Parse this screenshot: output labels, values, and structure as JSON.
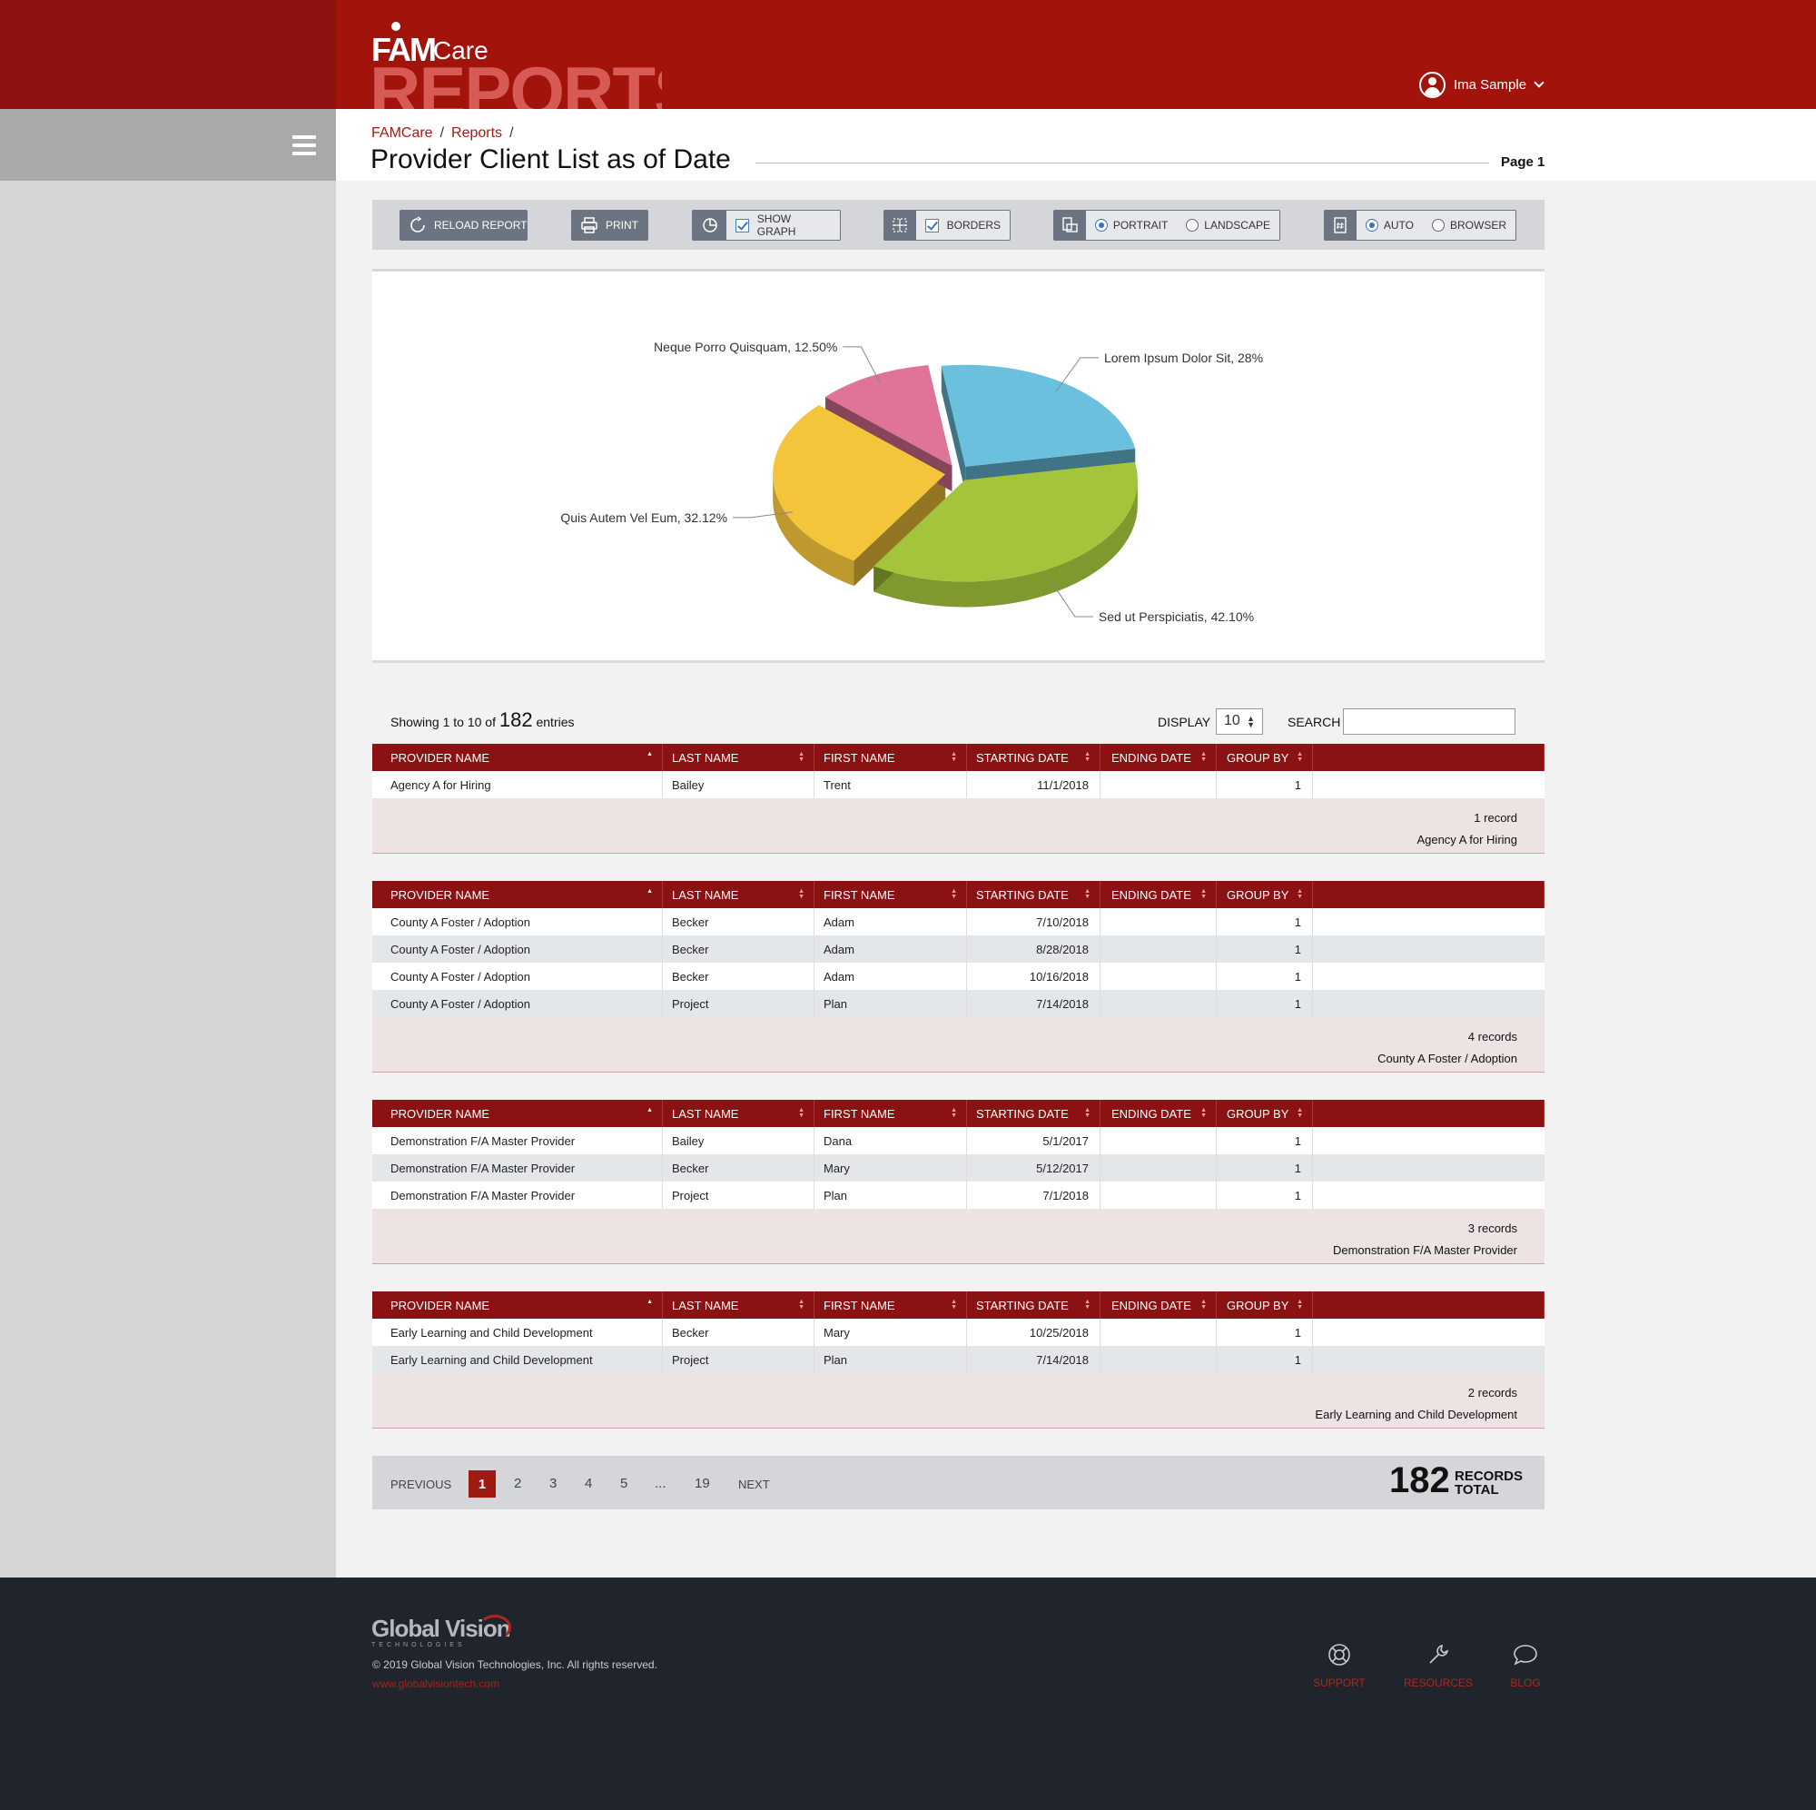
{
  "header": {
    "logo_fam": "FAM",
    "logo_care": "Care",
    "logo_reports": "REPORTS",
    "user_name": "Ima Sample"
  },
  "breadcrumb": [
    "FAMCare",
    "Reports"
  ],
  "page": {
    "title": "Provider Client List as of Date",
    "page_label": "Page 1"
  },
  "toolbar": {
    "reload": "RELOAD REPORT",
    "print": "PRINT",
    "show_graph": "SHOW GRAPH",
    "borders": "BORDERS",
    "portrait": "PORTRAIT",
    "landscape": "LANDSCAPE",
    "auto": "AUTO",
    "browser": "BROWSER",
    "selected_orientation": "PORTRAIT",
    "selected_width": "AUTO"
  },
  "chart_data": {
    "type": "pie",
    "slices": [
      {
        "label": "Lorem Ipsum Dolor Sit, 28%",
        "value": 28,
        "color": "#6bc0de"
      },
      {
        "label": "Sed ut Perspiciatis, 42.10%",
        "value": 42.1,
        "color": "#a3c43b"
      },
      {
        "label": "Quis Autem Vel Eum, 32.12%",
        "value": 32.12,
        "color": "#f4c43b"
      },
      {
        "label": "Neque Porro Quisquam, 12.50%",
        "value": 12.5,
        "color": "#e07398"
      }
    ]
  },
  "table": {
    "showing_prefix": "Showing 1 to 10 of",
    "showing_total": "182",
    "showing_suffix": "entries",
    "display_label": "DISPLAY",
    "display_value": "10",
    "search_label": "SEARCH",
    "search_value": "",
    "columns": [
      "PROVIDER NAME",
      "LAST NAME",
      "FIRST NAME",
      "STARTING DATE",
      "ENDING DATE",
      "GROUP BY"
    ],
    "groups": [
      {
        "rows": [
          [
            "Agency A for Hiring",
            "Bailey",
            "Trent",
            "11/1/2018",
            "",
            "1"
          ]
        ],
        "count": "1 record",
        "name": "Agency A for Hiring"
      },
      {
        "rows": [
          [
            "County A Foster / Adoption",
            "Becker",
            "Adam",
            "7/10/2018",
            "",
            "1"
          ],
          [
            "County A Foster / Adoption",
            "Becker",
            "Adam",
            "8/28/2018",
            "",
            "1"
          ],
          [
            "County A Foster / Adoption",
            "Becker",
            "Adam",
            "10/16/2018",
            "",
            "1"
          ],
          [
            "County A Foster / Adoption",
            "Project",
            "Plan",
            "7/14/2018",
            "",
            "1"
          ]
        ],
        "count": "4 records",
        "name": "County A Foster / Adoption"
      },
      {
        "rows": [
          [
            "Demonstration F/A Master Provider",
            "Bailey",
            "Dana",
            "5/1/2017",
            "",
            "1"
          ],
          [
            "Demonstration F/A Master Provider",
            "Becker",
            "Mary",
            "5/12/2017",
            "",
            "1"
          ],
          [
            "Demonstration F/A Master Provider",
            "Project",
            "Plan",
            "7/1/2018",
            "",
            "1"
          ]
        ],
        "count": "3 records",
        "name": "Demonstration F/A Master Provider"
      },
      {
        "rows": [
          [
            "Early Learning and Child Development",
            "Becker",
            "Mary",
            "10/25/2018",
            "",
            "1"
          ],
          [
            "Early Learning and Child Development",
            "Project",
            "Plan",
            "7/14/2018",
            "",
            "1"
          ]
        ],
        "count": "2 records",
        "name": "Early Learning and Child Development"
      }
    ]
  },
  "pagination": {
    "previous": "PREVIOUS",
    "pages": [
      "1",
      "2",
      "3",
      "4",
      "5",
      "...",
      "19"
    ],
    "current": "1",
    "next": "NEXT",
    "total_number": "182",
    "total_label_1": "RECORDS",
    "total_label_2": "TOTAL"
  },
  "footer": {
    "logo_text": "Global Vision",
    "logo_sub": "TECHNOLOGIES",
    "copyright": "© 2019 Global Vision Technologies, Inc. All rights reserved.",
    "website": "www.globalvisiontech.com",
    "links": [
      "SUPPORT",
      "RESOURCES",
      "BLOG"
    ]
  },
  "colors": {
    "brand_red": "#a2140b",
    "table_head": "#8b1212",
    "footer_bg": "#20252d"
  }
}
